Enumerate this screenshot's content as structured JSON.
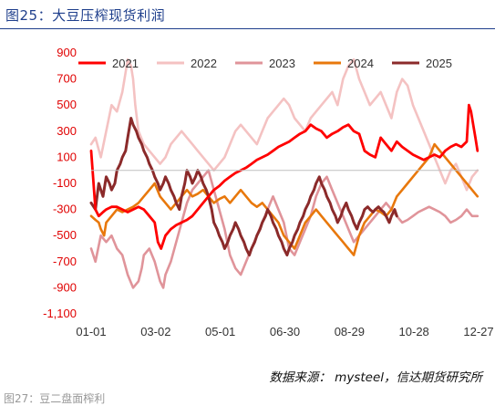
{
  "caption": {
    "title": "图25：大豆压榨现货利润"
  },
  "source": "数据来源： mysteel，信达期货研究所",
  "next_caption": "图27：豆二盘面榨利",
  "chart_data": {
    "type": "line",
    "title": "",
    "xlabel": "",
    "ylabel": "",
    "x_ticks": [
      "01-01",
      "03-02",
      "05-01",
      "06-30",
      "08-29",
      "10-28",
      "12-27"
    ],
    "y_ticks": [
      "900",
      "700",
      "500",
      "300",
      "100",
      "-100",
      "-300",
      "-500",
      "-700",
      "-900",
      "-1,100"
    ],
    "ylim": [
      -1100,
      900
    ],
    "xlim": [
      1,
      361
    ],
    "grid": false,
    "legend_position": "top",
    "series": [
      {
        "name": "2021",
        "color": "#ff0000",
        "x": [
          1,
          5,
          8,
          12,
          15,
          20,
          25,
          30,
          35,
          40,
          45,
          50,
          55,
          60,
          63,
          66,
          70,
          75,
          80,
          85,
          90,
          95,
          100,
          105,
          110,
          115,
          120,
          125,
          130,
          135,
          140,
          145,
          150,
          155,
          160,
          165,
          170,
          175,
          180,
          185,
          190,
          195,
          200,
          205,
          210,
          215,
          220,
          225,
          230,
          235,
          240,
          245,
          250,
          255,
          260,
          265,
          270,
          275,
          280,
          285,
          290,
          295,
          300,
          305,
          310,
          315,
          320,
          325,
          330,
          335,
          340,
          345,
          350,
          352,
          354,
          356,
          358,
          360
        ],
        "y": [
          150,
          -300,
          -350,
          -320,
          -300,
          -280,
          -280,
          -300,
          -320,
          -300,
          -280,
          -300,
          -350,
          -400,
          -550,
          -600,
          -500,
          -450,
          -420,
          -400,
          -380,
          -350,
          -300,
          -250,
          -200,
          -150,
          -120,
          -80,
          -50,
          -20,
          0,
          20,
          50,
          80,
          100,
          120,
          150,
          180,
          200,
          220,
          250,
          280,
          300,
          350,
          320,
          300,
          250,
          280,
          300,
          330,
          350,
          300,
          280,
          150,
          120,
          100,
          250,
          200,
          150,
          220,
          180,
          150,
          120,
          100,
          80,
          100,
          120,
          100,
          150,
          180,
          200,
          180,
          220,
          500,
          450,
          350,
          250,
          150
        ]
      },
      {
        "name": "2022",
        "color": "#f4c2c2",
        "x": [
          1,
          5,
          10,
          15,
          20,
          25,
          30,
          35,
          38,
          40,
          42,
          45,
          50,
          55,
          60,
          65,
          70,
          75,
          80,
          85,
          90,
          95,
          100,
          105,
          110,
          115,
          120,
          125,
          130,
          135,
          140,
          145,
          150,
          155,
          160,
          165,
          170,
          175,
          180,
          185,
          190,
          195,
          200,
          205,
          210,
          215,
          220,
          225,
          230,
          235,
          240,
          245,
          250,
          255,
          260,
          265,
          270,
          275,
          280,
          285,
          290,
          295,
          300,
          305,
          310,
          315,
          320,
          325,
          330,
          335,
          340,
          345,
          350,
          355,
          360
        ],
        "y": [
          200,
          250,
          100,
          300,
          500,
          450,
          600,
          850,
          800,
          700,
          500,
          300,
          200,
          150,
          100,
          50,
          100,
          200,
          250,
          300,
          250,
          200,
          150,
          100,
          50,
          0,
          50,
          100,
          200,
          300,
          350,
          300,
          250,
          200,
          300,
          400,
          450,
          500,
          550,
          500,
          400,
          350,
          300,
          400,
          450,
          500,
          550,
          600,
          500,
          700,
          800,
          850,
          700,
          600,
          500,
          550,
          600,
          500,
          400,
          600,
          700,
          650,
          500,
          400,
          300,
          200,
          100,
          0,
          -100,
          0,
          50,
          -50,
          -150,
          -50,
          0
        ]
      },
      {
        "name": "2023",
        "color": "#e0949a",
        "x": [
          1,
          5,
          10,
          15,
          20,
          25,
          30,
          35,
          40,
          45,
          48,
          50,
          55,
          60,
          65,
          68,
          70,
          75,
          80,
          85,
          90,
          95,
          100,
          105,
          110,
          115,
          120,
          125,
          130,
          135,
          140,
          145,
          150,
          155,
          160,
          165,
          170,
          175,
          180,
          185,
          190,
          195,
          200,
          205,
          210,
          215,
          220,
          225,
          230,
          235,
          240,
          245,
          250,
          255,
          260,
          265,
          270,
          275,
          280,
          285,
          290,
          295,
          300,
          305,
          310,
          315,
          320,
          325,
          330,
          335,
          340,
          345,
          350,
          355,
          360
        ],
        "y": [
          -600,
          -700,
          -500,
          -550,
          -500,
          -600,
          -650,
          -800,
          -900,
          -850,
          -750,
          -650,
          -600,
          -700,
          -850,
          -900,
          -800,
          -700,
          -550,
          -400,
          -250,
          -150,
          -100,
          -50,
          0,
          -150,
          -300,
          -450,
          -650,
          -750,
          -800,
          -700,
          -600,
          -500,
          -400,
          -300,
          -200,
          -300,
          -400,
          -600,
          -650,
          -550,
          -450,
          -350,
          -200,
          -100,
          -50,
          -150,
          -250,
          -350,
          -450,
          -550,
          -500,
          -450,
          -400,
          -350,
          -300,
          -250,
          -300,
          -350,
          -400,
          -380,
          -350,
          -320,
          -300,
          -280,
          -300,
          -320,
          -350,
          -400,
          -380,
          -350,
          -300,
          -350,
          -350
        ]
      },
      {
        "name": "2024",
        "color": "#e8780c",
        "x": [
          1,
          5,
          8,
          10,
          13,
          15,
          20,
          25,
          30,
          35,
          40,
          45,
          50,
          55,
          60,
          65,
          70,
          75,
          80,
          85,
          90,
          95,
          100,
          105,
          110,
          115,
          120,
          125,
          130,
          135,
          140,
          145,
          150,
          155,
          160,
          165,
          170,
          175,
          180,
          185,
          190,
          195,
          200,
          205,
          210,
          215,
          220,
          225,
          230,
          235,
          240,
          245,
          250,
          255,
          260,
          265,
          270,
          275,
          280,
          285,
          290,
          295,
          300,
          305,
          310,
          315,
          320,
          325,
          330,
          335,
          340,
          345,
          350,
          355,
          360
        ],
        "y": [
          -350,
          -380,
          -400,
          -450,
          -500,
          -400,
          -350,
          -300,
          -320,
          -300,
          -280,
          -250,
          -200,
          -150,
          -100,
          -200,
          -250,
          -300,
          -250,
          -200,
          -150,
          -200,
          -180,
          -150,
          -200,
          -250,
          -220,
          -200,
          -250,
          -200,
          -150,
          -200,
          -250,
          -280,
          -250,
          -300,
          -350,
          -400,
          -500,
          -550,
          -600,
          -500,
          -400,
          -350,
          -300,
          -350,
          -400,
          -450,
          -500,
          -550,
          -600,
          -650,
          -500,
          -400,
          -350,
          -300,
          -320,
          -350,
          -300,
          -200,
          -150,
          -100,
          -50,
          0,
          50,
          100,
          200,
          150,
          100,
          50,
          0,
          -50,
          -100,
          -150,
          -200
        ]
      },
      {
        "name": "2025",
        "color": "#8b2a2a",
        "x": [
          1,
          5,
          8,
          10,
          12,
          15,
          18,
          20,
          23,
          25,
          28,
          30,
          33,
          35,
          38,
          40,
          43,
          45,
          48,
          50,
          53,
          55,
          58,
          60,
          63,
          65,
          68,
          70,
          73,
          75,
          78,
          80,
          83,
          85,
          88,
          90,
          93,
          95,
          98,
          100,
          103,
          105,
          108,
          110,
          113,
          115,
          118,
          120,
          123,
          125,
          128,
          130,
          133,
          135,
          138,
          140,
          143,
          145,
          148,
          150,
          153,
          155,
          158,
          160,
          163,
          165,
          168,
          170,
          173,
          175,
          178,
          180,
          183,
          185,
          188,
          190,
          193,
          195,
          198,
          200,
          203,
          205,
          208,
          210,
          213,
          215,
          218,
          220,
          223,
          225,
          228,
          230,
          233,
          235,
          238,
          240,
          243,
          245,
          248,
          250,
          253,
          255,
          258,
          260,
          263,
          265,
          268,
          270,
          273,
          275,
          278,
          280,
          283,
          285
        ],
        "y": [
          -250,
          -300,
          -100,
          -150,
          -200,
          -50,
          -100,
          -150,
          -100,
          0,
          50,
          100,
          150,
          250,
          400,
          350,
          300,
          250,
          200,
          150,
          100,
          50,
          0,
          -50,
          -100,
          -150,
          -100,
          -50,
          -100,
          -150,
          -200,
          -250,
          -300,
          -200,
          -100,
          0,
          -50,
          -100,
          -50,
          0,
          -50,
          -100,
          -150,
          -200,
          -300,
          -400,
          -450,
          -500,
          -550,
          -600,
          -550,
          -500,
          -450,
          -400,
          -450,
          -500,
          -550,
          -600,
          -650,
          -600,
          -550,
          -500,
          -450,
          -400,
          -350,
          -300,
          -350,
          -400,
          -450,
          -500,
          -550,
          -600,
          -650,
          -600,
          -550,
          -500,
          -450,
          -400,
          -350,
          -300,
          -250,
          -200,
          -150,
          -100,
          -50,
          -100,
          -150,
          -200,
          -250,
          -300,
          -350,
          -400,
          -350,
          -300,
          -250,
          -300,
          -350,
          -400,
          -450,
          -400,
          -350,
          -300,
          -280,
          -300,
          -320,
          -300,
          -280,
          -300,
          -320,
          -350,
          -400,
          -350,
          -300,
          -350
        ]
      }
    ]
  }
}
